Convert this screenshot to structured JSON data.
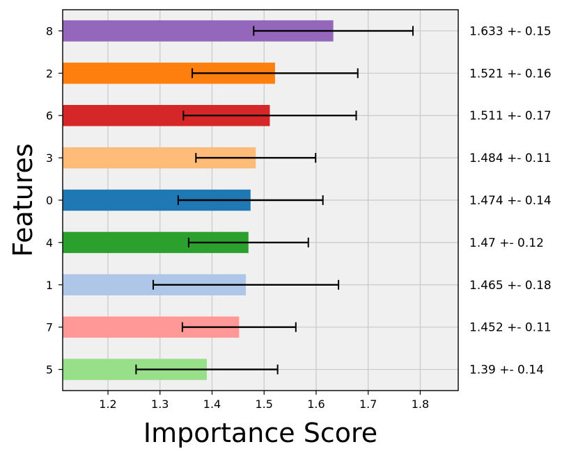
{
  "chart_data": {
    "type": "bar",
    "orientation": "horizontal",
    "xlabel": "Importance Score",
    "ylabel": "Features",
    "xlim": [
      1.113,
      1.873
    ],
    "xticks": [
      1.2,
      1.3,
      1.4,
      1.5,
      1.6,
      1.7,
      1.8
    ],
    "xtick_labels": [
      "1.2",
      "1.3",
      "1.4",
      "1.5",
      "1.6",
      "1.7",
      "1.8"
    ],
    "grid": true,
    "categories": [
      "8",
      "2",
      "6",
      "3",
      "0",
      "4",
      "1",
      "7",
      "5"
    ],
    "values": [
      1.633,
      1.521,
      1.511,
      1.484,
      1.474,
      1.47,
      1.465,
      1.452,
      1.39
    ],
    "errors": [
      0.153,
      0.159,
      0.166,
      0.115,
      0.139,
      0.115,
      0.178,
      0.109,
      0.136
    ],
    "colors": [
      "#9467bd",
      "#ff7f0e",
      "#d62728",
      "#ffbb78",
      "#1f77b4",
      "#2ca02c",
      "#aec7e8",
      "#ff9896",
      "#98df8a"
    ],
    "annotations": [
      "1.633 +- 0.15",
      "1.521 +- 0.16",
      "1.511 +- 0.17",
      "1.484 +- 0.11",
      "1.474 +- 0.14",
      "1.47 +- 0.12",
      "1.465 +- 0.18",
      "1.452 +- 0.11",
      "1.39 +- 0.14"
    ]
  }
}
